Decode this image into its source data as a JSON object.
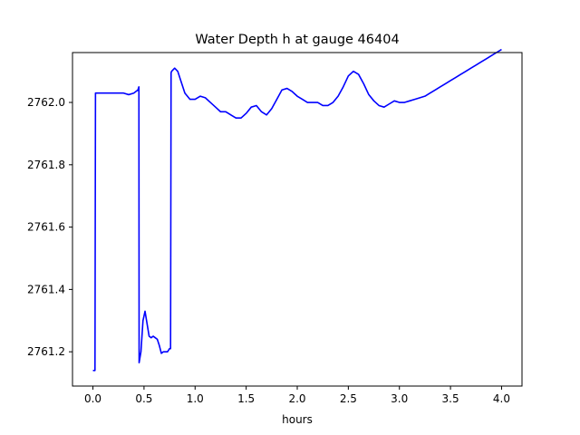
{
  "chart_data": {
    "type": "line",
    "title": "Water Depth h at gauge 46404",
    "xlabel": "hours",
    "ylabel": "",
    "xlim": [
      -0.2,
      4.2
    ],
    "ylim": [
      2761.09,
      2762.16
    ],
    "xticks": [
      0.0,
      0.5,
      1.0,
      1.5,
      2.0,
      2.5,
      3.0,
      3.5,
      4.0
    ],
    "xtick_labels": [
      "0.0",
      "0.5",
      "1.0",
      "1.5",
      "2.0",
      "2.5",
      "3.0",
      "3.5",
      "4.0"
    ],
    "yticks": [
      2761.2,
      2761.4,
      2761.6,
      2761.8,
      2762.0
    ],
    "ytick_labels": [
      "2761.2",
      "2761.4",
      "2761.6",
      "2761.8",
      "2762.0"
    ],
    "grid": false,
    "series": [
      {
        "color": "#0000ff",
        "x": [
          0.0,
          0.02,
          0.025,
          0.05,
          0.1,
          0.2,
          0.3,
          0.35,
          0.4,
          0.44,
          0.45,
          0.452,
          0.47,
          0.49,
          0.51,
          0.53,
          0.55,
          0.57,
          0.59,
          0.61,
          0.63,
          0.65,
          0.67,
          0.69,
          0.71,
          0.73,
          0.75,
          0.76,
          0.765,
          0.77,
          0.8,
          0.83,
          0.86,
          0.9,
          0.95,
          1.0,
          1.05,
          1.1,
          1.15,
          1.2,
          1.25,
          1.3,
          1.35,
          1.4,
          1.45,
          1.5,
          1.55,
          1.6,
          1.65,
          1.7,
          1.75,
          1.8,
          1.85,
          1.9,
          1.95,
          2.0,
          2.05,
          2.1,
          2.15,
          2.2,
          2.25,
          2.3,
          2.35,
          2.4,
          2.45,
          2.5,
          2.55,
          2.6,
          2.65,
          2.7,
          2.75,
          2.8,
          2.85,
          2.9,
          2.95,
          3.0,
          3.05,
          3.1,
          3.15,
          3.2,
          3.25,
          3.3,
          3.35,
          3.4,
          3.45,
          3.5,
          3.55,
          3.6,
          3.65,
          3.7,
          3.75,
          3.8,
          3.85,
          3.9,
          3.95,
          4.0
        ],
        "y": [
          2761.14,
          2761.14,
          2762.03,
          2762.03,
          2762.03,
          2762.03,
          2762.03,
          2762.025,
          2762.03,
          2762.04,
          2762.05,
          2761.165,
          2761.2,
          2761.3,
          2761.33,
          2761.29,
          2761.25,
          2761.245,
          2761.25,
          2761.245,
          2761.24,
          2761.22,
          2761.195,
          2761.2,
          2761.2,
          2761.2,
          2761.21,
          2761.21,
          2762.095,
          2762.1,
          2762.11,
          2762.1,
          2762.07,
          2762.03,
          2762.01,
          2762.01,
          2762.02,
          2762.015,
          2762.0,
          2761.985,
          2761.97,
          2761.97,
          2761.96,
          2761.95,
          2761.95,
          2761.965,
          2761.985,
          2761.99,
          2761.97,
          2761.96,
          2761.98,
          2762.01,
          2762.04,
          2762.045,
          2762.035,
          2762.02,
          2762.01,
          2762.0,
          2762.0,
          2762.0,
          2761.99,
          2761.99,
          2762.0,
          2762.02,
          2762.05,
          2762.085,
          2762.1,
          2762.09,
          2762.06,
          2762.025,
          2762.005,
          2761.99,
          2761.985,
          2761.995,
          2762.005,
          2762.0,
          2762.0,
          2762.005,
          2762.01,
          2762.015,
          2762.02,
          2762.03,
          2762.04,
          2762.05,
          2762.06,
          2762.07,
          2762.08,
          2762.09,
          2762.1,
          2762.11,
          2762.12,
          2762.13,
          2762.14,
          2762.15,
          2762.16,
          2762.17
        ]
      }
    ]
  }
}
